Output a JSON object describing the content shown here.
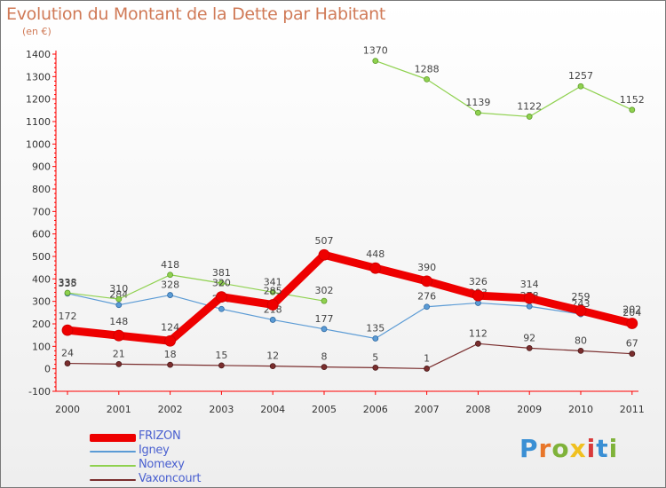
{
  "header": {
    "title": "Evolution du Montant de la Dette par Habitant",
    "subtitle": "(en €)"
  },
  "logo": {
    "text": "Proxiti"
  },
  "chart_data": {
    "type": "line",
    "title": "Evolution du Montant de la Dette par Habitant",
    "subtitle": "(en €)",
    "xlabel": "",
    "ylabel": "",
    "x": [
      "2000",
      "2001",
      "2002",
      "2003",
      "2004",
      "2005",
      "2006",
      "2007",
      "2008",
      "2009",
      "2010",
      "2011"
    ],
    "ylim": [
      -100,
      1400
    ],
    "yticks": [
      -100,
      0,
      100,
      200,
      300,
      400,
      500,
      600,
      700,
      800,
      900,
      1000,
      1100,
      1200,
      1300,
      1400
    ],
    "grid": false,
    "legend_position": "bottom-left",
    "series": [
      {
        "name": "FRIZON",
        "color": "#ee0000",
        "values": [
          172,
          148,
          124,
          320,
          285,
          507,
          448,
          390,
          326,
          314,
          259,
          202
        ]
      },
      {
        "name": "Igney",
        "color": "#5b9bd5",
        "values": [
          335,
          284,
          328,
          266,
          218,
          177,
          135,
          276,
          293,
          278,
          243,
          204
        ]
      },
      {
        "name": "Nomexy",
        "color": "#8fd14f",
        "values": [
          338,
          310,
          418,
          381,
          341,
          302,
          1370,
          1288,
          1139,
          1122,
          1257,
          1152
        ]
      },
      {
        "name": "Vaxoncourt",
        "color": "#7a2e2e",
        "values": [
          24,
          21,
          18,
          15,
          12,
          8,
          5,
          1,
          112,
          92,
          80,
          67
        ]
      }
    ],
    "data_labels": {
      "FRIZON": [
        "172",
        "148",
        "124",
        "320",
        "285",
        "507",
        "448",
        "390",
        "326",
        "314",
        "259",
        "202"
      ],
      "Igney": [
        "335",
        "284",
        "328",
        "266",
        "218",
        "177",
        "135",
        "276",
        "293",
        "278",
        "243",
        "204"
      ],
      "Nomexy": [
        "338",
        "310",
        "418",
        "381",
        "341",
        "302",
        "1370",
        "1288",
        "1139",
        "1122",
        "1257",
        "1152"
      ],
      "Vaxoncourt": [
        "24",
        "21",
        "18",
        "15",
        "12",
        "8",
        "5",
        "1",
        "112",
        "92",
        "80",
        "67"
      ]
    }
  }
}
